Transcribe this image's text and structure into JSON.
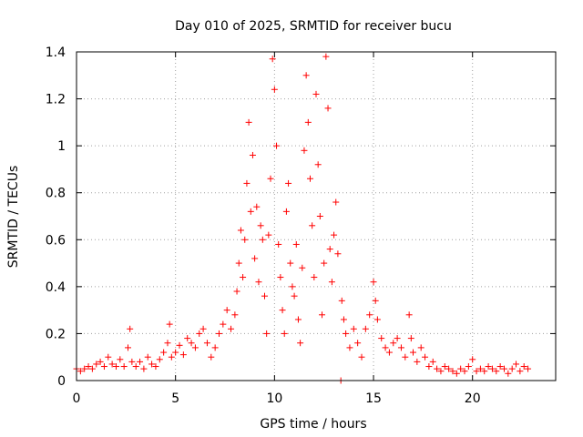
{
  "chart_data": {
    "type": "scatter",
    "title": "Day 010 of 2025, SRMTID for receiver bucu",
    "xlabel": "GPS time / hours",
    "ylabel": "SRMTID / TECUs",
    "xlim": [
      0,
      24.2
    ],
    "ylim": [
      0,
      1.4
    ],
    "xticks": [
      0,
      5,
      10,
      15,
      20
    ],
    "xtick_labels": [
      "0",
      "5",
      "10",
      "15",
      "20"
    ],
    "yticks": [
      0,
      0.2,
      0.4,
      0.6,
      0.8,
      1.0,
      1.2,
      1.4
    ],
    "ytick_labels": [
      "0",
      "0.2",
      "0.4",
      "0.6",
      "0.8",
      "1",
      "1.2",
      "1.4"
    ],
    "grid": true,
    "marker": "plus",
    "series_color": "#ff0000",
    "series": [
      {
        "name": "SRMTID",
        "points": [
          [
            0.0,
            0.05
          ],
          [
            0.2,
            0.04
          ],
          [
            0.4,
            0.05
          ],
          [
            0.6,
            0.06
          ],
          [
            0.8,
            0.05
          ],
          [
            1.0,
            0.07
          ],
          [
            1.2,
            0.08
          ],
          [
            1.4,
            0.06
          ],
          [
            1.6,
            0.1
          ],
          [
            1.8,
            0.07
          ],
          [
            2.0,
            0.06
          ],
          [
            2.2,
            0.09
          ],
          [
            2.4,
            0.06
          ],
          [
            2.6,
            0.14
          ],
          [
            2.7,
            0.22
          ],
          [
            2.8,
            0.08
          ],
          [
            3.0,
            0.06
          ],
          [
            3.2,
            0.08
          ],
          [
            3.4,
            0.05
          ],
          [
            3.6,
            0.1
          ],
          [
            3.8,
            0.07
          ],
          [
            4.0,
            0.06
          ],
          [
            4.2,
            0.09
          ],
          [
            4.4,
            0.12
          ],
          [
            4.6,
            0.16
          ],
          [
            4.7,
            0.24
          ],
          [
            4.8,
            0.1
          ],
          [
            5.0,
            0.12
          ],
          [
            5.2,
            0.15
          ],
          [
            5.4,
            0.11
          ],
          [
            5.6,
            0.18
          ],
          [
            5.8,
            0.16
          ],
          [
            6.0,
            0.14
          ],
          [
            6.2,
            0.2
          ],
          [
            6.4,
            0.22
          ],
          [
            6.6,
            0.16
          ],
          [
            6.8,
            0.1
          ],
          [
            7.0,
            0.14
          ],
          [
            7.2,
            0.2
          ],
          [
            7.4,
            0.24
          ],
          [
            7.6,
            0.3
          ],
          [
            7.8,
            0.22
          ],
          [
            8.0,
            0.28
          ],
          [
            8.1,
            0.38
          ],
          [
            8.2,
            0.5
          ],
          [
            8.3,
            0.64
          ],
          [
            8.4,
            0.44
          ],
          [
            8.5,
            0.6
          ],
          [
            8.6,
            0.84
          ],
          [
            8.7,
            1.1
          ],
          [
            8.8,
            0.72
          ],
          [
            8.9,
            0.96
          ],
          [
            9.0,
            0.52
          ],
          [
            9.1,
            0.74
          ],
          [
            9.2,
            0.42
          ],
          [
            9.3,
            0.66
          ],
          [
            9.4,
            0.6
          ],
          [
            9.5,
            0.36
          ],
          [
            9.6,
            0.2
          ],
          [
            9.7,
            0.62
          ],
          [
            9.8,
            0.86
          ],
          [
            9.9,
            1.37
          ],
          [
            10.0,
            1.24
          ],
          [
            10.1,
            1.0
          ],
          [
            10.2,
            0.58
          ],
          [
            10.3,
            0.44
          ],
          [
            10.4,
            0.3
          ],
          [
            10.5,
            0.2
          ],
          [
            10.6,
            0.72
          ],
          [
            10.7,
            0.84
          ],
          [
            10.8,
            0.5
          ],
          [
            10.9,
            0.4
          ],
          [
            11.0,
            0.36
          ],
          [
            11.1,
            0.58
          ],
          [
            11.2,
            0.26
          ],
          [
            11.3,
            0.16
          ],
          [
            11.4,
            0.48
          ],
          [
            11.5,
            0.98
          ],
          [
            11.6,
            1.3
          ],
          [
            11.7,
            1.1
          ],
          [
            11.8,
            0.86
          ],
          [
            11.9,
            0.66
          ],
          [
            12.0,
            0.44
          ],
          [
            12.1,
            1.22
          ],
          [
            12.2,
            0.92
          ],
          [
            12.3,
            0.7
          ],
          [
            12.4,
            0.28
          ],
          [
            12.5,
            0.5
          ],
          [
            12.6,
            1.38
          ],
          [
            12.7,
            1.16
          ],
          [
            12.8,
            0.56
          ],
          [
            12.9,
            0.42
          ],
          [
            13.0,
            0.62
          ],
          [
            13.1,
            0.76
          ],
          [
            13.2,
            0.54
          ],
          [
            13.35,
            0.0
          ],
          [
            13.4,
            0.34
          ],
          [
            13.5,
            0.26
          ],
          [
            13.6,
            0.2
          ],
          [
            13.8,
            0.14
          ],
          [
            14.0,
            0.22
          ],
          [
            14.2,
            0.16
          ],
          [
            14.4,
            0.1
          ],
          [
            14.6,
            0.22
          ],
          [
            14.8,
            0.28
          ],
          [
            15.0,
            0.42
          ],
          [
            15.1,
            0.34
          ],
          [
            15.2,
            0.26
          ],
          [
            15.4,
            0.18
          ],
          [
            15.6,
            0.14
          ],
          [
            15.8,
            0.12
          ],
          [
            16.0,
            0.16
          ],
          [
            16.2,
            0.18
          ],
          [
            16.4,
            0.14
          ],
          [
            16.6,
            0.1
          ],
          [
            16.8,
            0.28
          ],
          [
            16.9,
            0.18
          ],
          [
            17.0,
            0.12
          ],
          [
            17.2,
            0.08
          ],
          [
            17.4,
            0.14
          ],
          [
            17.6,
            0.1
          ],
          [
            17.8,
            0.06
          ],
          [
            18.0,
            0.08
          ],
          [
            18.2,
            0.05
          ],
          [
            18.4,
            0.04
          ],
          [
            18.6,
            0.06
          ],
          [
            18.8,
            0.05
          ],
          [
            19.0,
            0.04
          ],
          [
            19.2,
            0.03
          ],
          [
            19.4,
            0.05
          ],
          [
            19.6,
            0.04
          ],
          [
            19.8,
            0.06
          ],
          [
            20.0,
            0.09
          ],
          [
            20.2,
            0.04
          ],
          [
            20.4,
            0.05
          ],
          [
            20.6,
            0.04
          ],
          [
            20.8,
            0.06
          ],
          [
            21.0,
            0.05
          ],
          [
            21.2,
            0.04
          ],
          [
            21.4,
            0.06
          ],
          [
            21.6,
            0.05
          ],
          [
            21.8,
            0.03
          ],
          [
            22.0,
            0.05
          ],
          [
            22.2,
            0.07
          ],
          [
            22.4,
            0.04
          ],
          [
            22.6,
            0.06
          ],
          [
            22.8,
            0.05
          ]
        ]
      }
    ]
  }
}
